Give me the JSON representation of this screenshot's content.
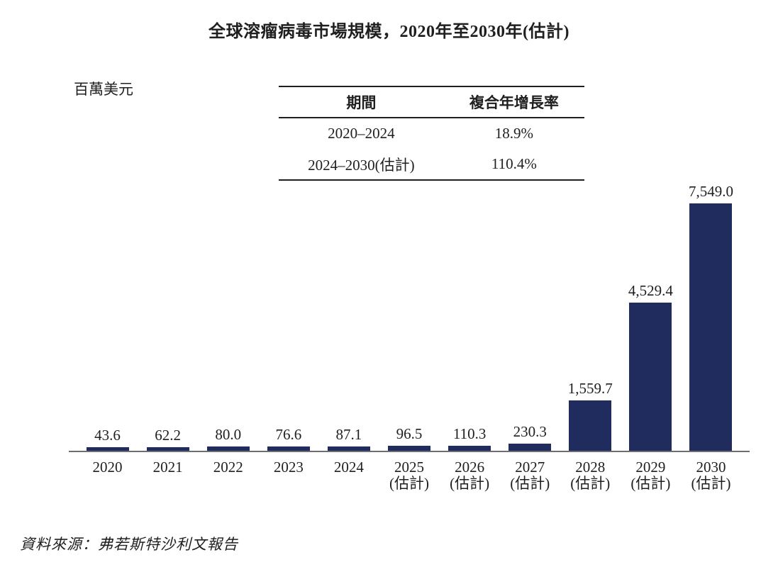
{
  "page": {
    "title": "全球溶瘤病毒市場規模，2020年至2030年(估計)",
    "unit_label": "百萬美元",
    "source": "資料來源：弗若斯特沙利文報告"
  },
  "cagr_table": {
    "headers": [
      "期間",
      "複合年增長率"
    ],
    "rows": [
      [
        "2020–2024",
        "18.9%"
      ],
      [
        "2024–2030(估計)",
        "110.4%"
      ]
    ]
  },
  "chart_data": {
    "type": "bar",
    "title": "全球溶瘤病毒市場規模，2020年至2030年(估計)",
    "ylabel": "百萬美元",
    "xlabel": "",
    "ylim": [
      0,
      7549
    ],
    "grid": false,
    "legend": null,
    "bar_color": "#202B5E",
    "axis_color": "#6D6E71",
    "categories": [
      {
        "year": "2020",
        "note": ""
      },
      {
        "year": "2021",
        "note": ""
      },
      {
        "year": "2022",
        "note": ""
      },
      {
        "year": "2023",
        "note": ""
      },
      {
        "year": "2024",
        "note": ""
      },
      {
        "year": "2025",
        "note": "(估計)"
      },
      {
        "year": "2026",
        "note": "(估計)"
      },
      {
        "year": "2027",
        "note": "(估計)"
      },
      {
        "year": "2028",
        "note": "(估計)"
      },
      {
        "year": "2029",
        "note": "(估計)"
      },
      {
        "year": "2030",
        "note": "(估計)"
      }
    ],
    "values": [
      43.6,
      62.2,
      80.0,
      76.6,
      87.1,
      96.5,
      110.3,
      230.3,
      1559.7,
      4529.4,
      7549.0
    ],
    "value_labels": [
      "43.6",
      "62.2",
      "80.0",
      "76.6",
      "87.1",
      "96.5",
      "110.3",
      "230.3",
      "1,559.7",
      "4,529.4",
      "7,549.0"
    ]
  }
}
